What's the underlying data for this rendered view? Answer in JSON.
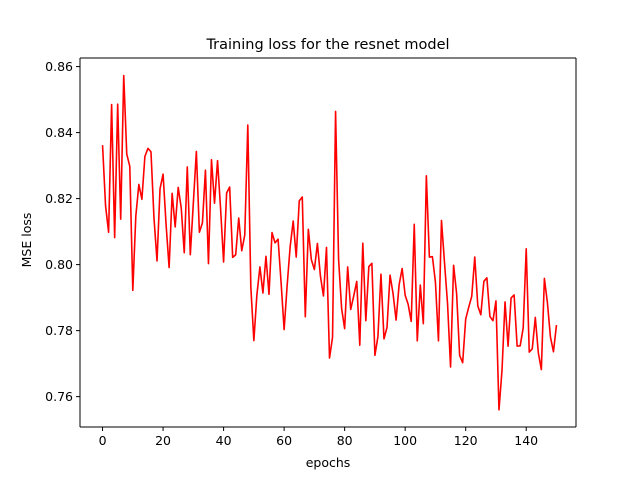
{
  "chart_data": {
    "type": "line",
    "title": "Training loss for the resnet model",
    "xlabel": "epochs",
    "ylabel": "MSE loss",
    "xlim": [
      -7.45,
      156.45
    ],
    "ylim": [
      0.7508,
      0.8626
    ],
    "xticks": [
      0,
      20,
      40,
      60,
      80,
      100,
      120,
      140
    ],
    "yticks": [
      0.76,
      0.78,
      0.8,
      0.82,
      0.84,
      0.86
    ],
    "ytick_labels": [
      "0.76",
      "0.78",
      "0.80",
      "0.82",
      "0.84",
      "0.86"
    ],
    "grid": false,
    "series": [
      {
        "color": "#ff0000",
        "x_start": 0,
        "x_step": 1,
        "values": [
          0.8362,
          0.8178,
          0.8098,
          0.8485,
          0.8082,
          0.8486,
          0.8138,
          0.8573,
          0.8335,
          0.8298,
          0.7922,
          0.8148,
          0.8243,
          0.8198,
          0.8328,
          0.8352,
          0.8342,
          0.8141,
          0.8011,
          0.823,
          0.8274,
          0.8121,
          0.7991,
          0.8216,
          0.8114,
          0.8234,
          0.8172,
          0.8036,
          0.8296,
          0.803,
          0.8186,
          0.8343,
          0.8098,
          0.8126,
          0.8286,
          0.8003,
          0.8318,
          0.8186,
          0.8315,
          0.817,
          0.8008,
          0.8217,
          0.8235,
          0.8022,
          0.803,
          0.8141,
          0.8042,
          0.809,
          0.8423,
          0.7932,
          0.777,
          0.7908,
          0.7993,
          0.7914,
          0.8025,
          0.791,
          0.8097,
          0.8066,
          0.8077,
          0.7946,
          0.7803,
          0.7937,
          0.8055,
          0.8132,
          0.8023,
          0.8193,
          0.8205,
          0.7842,
          0.8107,
          0.8015,
          0.7985,
          0.8064,
          0.7965,
          0.7905,
          0.8052,
          0.7717,
          0.778,
          0.8464,
          0.8016,
          0.7867,
          0.7806,
          0.7993,
          0.7864,
          0.7905,
          0.7949,
          0.7756,
          0.8065,
          0.783,
          0.7994,
          0.8004,
          0.7725,
          0.7782,
          0.7971,
          0.7775,
          0.781,
          0.7968,
          0.7912,
          0.7832,
          0.7939,
          0.7988,
          0.7907,
          0.7879,
          0.7828,
          0.8122,
          0.7769,
          0.7938,
          0.7821,
          0.8269,
          0.8023,
          0.8024,
          0.7947,
          0.7769,
          0.8134,
          0.8006,
          0.7882,
          0.769,
          0.7998,
          0.7912,
          0.7725,
          0.7703,
          0.7835,
          0.7871,
          0.7904,
          0.8023,
          0.7875,
          0.7848,
          0.7949,
          0.796,
          0.7843,
          0.783,
          0.789,
          0.756,
          0.768,
          0.7887,
          0.7753,
          0.7899,
          0.7908,
          0.7753,
          0.7754,
          0.7808,
          0.8048,
          0.7735,
          0.7745,
          0.784,
          0.7733,
          0.7682,
          0.7958,
          0.7885,
          0.7781,
          0.7736,
          0.7817
        ]
      }
    ]
  }
}
